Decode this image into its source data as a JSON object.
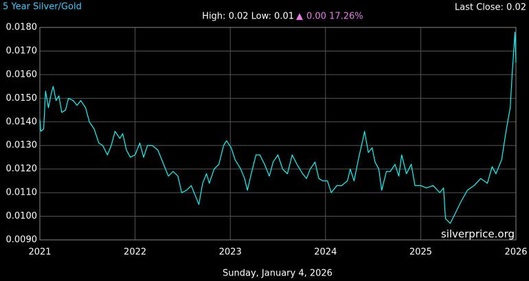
{
  "chart_data": {
    "type": "line",
    "title": "5 Year Silver/Gold",
    "stats": "High: 0.02 Low: 0.01",
    "change_arrow": "▲",
    "change": "0.00 17.26%",
    "last_close": "Last Close: 0.02",
    "watermark": "silverprice.org",
    "date": "Sunday, January 4, 2026",
    "grid": true,
    "xlim": [
      2021,
      2026
    ],
    "xticks": [
      2021,
      2022,
      2023,
      2024,
      2025,
      2026
    ],
    "ylim": [
      0.009,
      0.018
    ],
    "yticks": [
      {
        "value": 0.018,
        "label": "0.0180"
      },
      {
        "value": 0.017,
        "label": "0.0170"
      },
      {
        "value": 0.016,
        "label": "0.0160"
      },
      {
        "value": 0.015,
        "label": "0.0150"
      },
      {
        "value": 0.014,
        "label": "0.0140"
      },
      {
        "value": 0.013,
        "label": "0.0130"
      },
      {
        "value": 0.012,
        "label": "0.0120"
      },
      {
        "value": 0.011,
        "label": "0.0110"
      },
      {
        "value": 0.01,
        "label": "0.0100"
      },
      {
        "value": 0.009,
        "label": "0.0090"
      }
    ],
    "x": [
      2021.0,
      2021.01,
      2021.04,
      2021.06,
      2021.09,
      2021.12,
      2021.14,
      2021.17,
      2021.2,
      2021.23,
      2021.27,
      2021.3,
      2021.35,
      2021.39,
      2021.43,
      2021.48,
      2021.52,
      2021.57,
      2021.62,
      2021.66,
      2021.71,
      2021.75,
      2021.79,
      2021.84,
      2021.87,
      2021.91,
      2021.95,
      2022.0,
      2022.05,
      2022.09,
      2022.13,
      2022.18,
      2022.24,
      2022.3,
      2022.35,
      2022.4,
      2022.45,
      2022.49,
      2022.54,
      2022.59,
      2022.63,
      2022.67,
      2022.71,
      2022.75,
      2022.78,
      2022.83,
      2022.88,
      2022.93,
      2022.96,
      2023.01,
      2023.05,
      2023.11,
      2023.15,
      2023.18,
      2023.22,
      2023.27,
      2023.31,
      2023.36,
      2023.41,
      2023.45,
      2023.5,
      2023.55,
      2023.6,
      2023.65,
      2023.7,
      2023.76,
      2023.8,
      2023.84,
      2023.89,
      2023.93,
      2023.97,
      2024.02,
      2024.06,
      2024.12,
      2024.17,
      2024.23,
      2024.26,
      2024.3,
      2024.35,
      2024.39,
      2024.41,
      2024.45,
      2024.49,
      2024.52,
      2024.56,
      2024.59,
      2024.64,
      2024.68,
      2024.73,
      2024.77,
      2024.8,
      2024.85,
      2024.9,
      2024.94,
      2025.0,
      2025.06,
      2025.13,
      2025.2,
      2025.24,
      2025.26,
      2025.31,
      2025.36,
      2025.42,
      2025.49,
      2025.56,
      2025.63,
      2025.7,
      2025.75,
      2025.79,
      2025.85,
      2025.9,
      2025.94,
      2025.96,
      2025.99,
      2026.0
    ],
    "series": [
      {
        "name": "Silver/Gold",
        "color": "#00ffff",
        "values": [
          0.0141,
          0.0136,
          0.0137,
          0.0153,
          0.0146,
          0.0152,
          0.0155,
          0.0149,
          0.0151,
          0.0144,
          0.0145,
          0.015,
          0.0149,
          0.0147,
          0.0149,
          0.0146,
          0.014,
          0.0137,
          0.0131,
          0.013,
          0.0126,
          0.013,
          0.0136,
          0.0133,
          0.0135,
          0.0128,
          0.0125,
          0.0126,
          0.0131,
          0.0125,
          0.013,
          0.013,
          0.0128,
          0.0122,
          0.0117,
          0.0119,
          0.0117,
          0.011,
          0.0111,
          0.0113,
          0.0109,
          0.0105,
          0.0114,
          0.0118,
          0.0114,
          0.012,
          0.0122,
          0.013,
          0.0132,
          0.0129,
          0.0124,
          0.012,
          0.0116,
          0.0111,
          0.0118,
          0.0126,
          0.0126,
          0.0122,
          0.0117,
          0.0123,
          0.0126,
          0.012,
          0.0118,
          0.0126,
          0.0122,
          0.0118,
          0.0116,
          0.012,
          0.0123,
          0.0116,
          0.0115,
          0.0115,
          0.011,
          0.0113,
          0.0113,
          0.0115,
          0.012,
          0.0115,
          0.0125,
          0.0132,
          0.0136,
          0.0127,
          0.0129,
          0.0123,
          0.012,
          0.0111,
          0.0119,
          0.0119,
          0.0122,
          0.0117,
          0.0126,
          0.0118,
          0.0122,
          0.0113,
          0.0113,
          0.0112,
          0.0113,
          0.011,
          0.0112,
          0.0099,
          0.0097,
          0.0101,
          0.0106,
          0.0111,
          0.0113,
          0.0116,
          0.0114,
          0.0121,
          0.0118,
          0.0124,
          0.0137,
          0.0146,
          0.016,
          0.0178,
          0.0165
        ]
      }
    ]
  }
}
